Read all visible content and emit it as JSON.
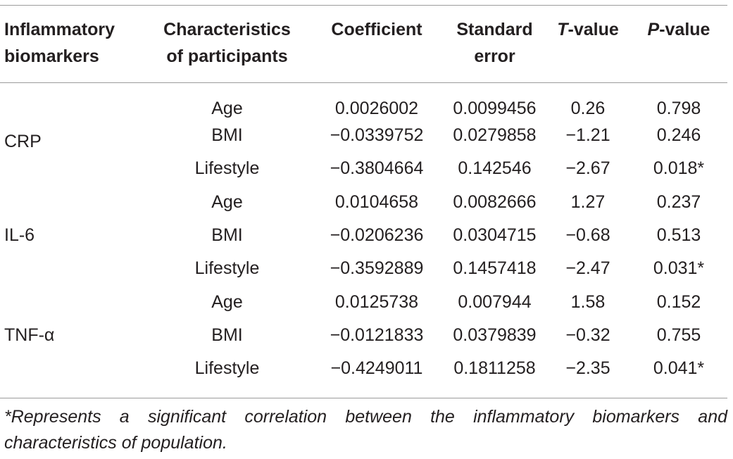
{
  "table": {
    "headers": {
      "biomarker": {
        "line1": "Inflammatory",
        "line2": "biomarkers"
      },
      "characteristic": {
        "line1": "Characteristics",
        "line2": "of participants"
      },
      "coefficient": "Coefficient",
      "standard_error": {
        "line1": "Standard",
        "line2": "error"
      },
      "t_value": {
        "prefix": "T",
        "suffix": "-value"
      },
      "p_value": {
        "prefix": "P",
        "suffix": "-value"
      }
    },
    "groups": [
      {
        "biomarker": "CRP",
        "rows": [
          {
            "characteristic": "Age",
            "coefficient": "0.0026002",
            "standard_error": "0.0099456",
            "t_value": "0.26",
            "p_value": "0.798"
          },
          {
            "characteristic": "BMI",
            "coefficient": "−0.0339752",
            "standard_error": "0.0279858",
            "t_value": "−1.21",
            "p_value": "0.246"
          },
          {
            "characteristic": "Lifestyle",
            "coefficient": "−0.3804664",
            "standard_error": "0.142546",
            "t_value": "−2.67",
            "p_value": "0.018*"
          }
        ]
      },
      {
        "biomarker": "IL-6",
        "rows": [
          {
            "characteristic": "Age",
            "coefficient": "0.0104658",
            "standard_error": "0.0082666",
            "t_value": "1.27",
            "p_value": "0.237"
          },
          {
            "characteristic": "BMI",
            "coefficient": "−0.0206236",
            "standard_error": "0.0304715",
            "t_value": "−0.68",
            "p_value": "0.513"
          },
          {
            "characteristic": "Lifestyle",
            "coefficient": "−0.3592889",
            "standard_error": "0.1457418",
            "t_value": "−2.47",
            "p_value": "0.031*"
          }
        ]
      },
      {
        "biomarker": "TNF-α",
        "rows": [
          {
            "characteristic": "Age",
            "coefficient": "0.0125738",
            "standard_error": "0.007944",
            "t_value": "1.58",
            "p_value": "0.152"
          },
          {
            "characteristic": "BMI",
            "coefficient": "−0.0121833",
            "standard_error": "0.0379839",
            "t_value": "−0.32",
            "p_value": "0.755"
          },
          {
            "characteristic": "Lifestyle",
            "coefficient": "−0.4249011",
            "standard_error": "0.1811258",
            "t_value": "−2.35",
            "p_value": "0.041*"
          }
        ]
      }
    ]
  },
  "footnote": "*Represents a significant correlation between the inflammatory biomarkers and characteristics of population."
}
